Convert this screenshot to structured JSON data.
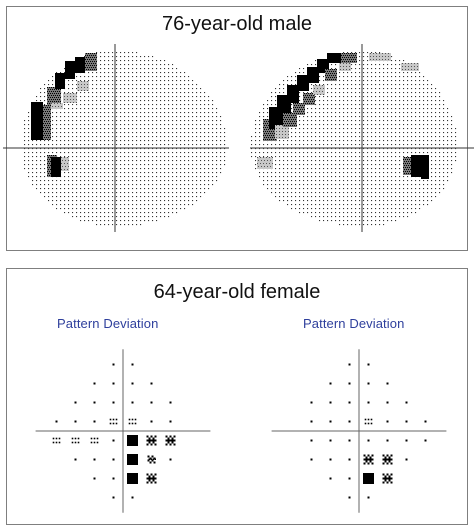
{
  "cases": [
    {
      "title": "76-year-old male",
      "fields": [
        {
          "eye": "left",
          "display": "grayscale",
          "defects": [
            "superior arcuate scotoma",
            "blind spot"
          ]
        },
        {
          "eye": "right",
          "display": "grayscale",
          "defects": [
            "superior arcuate scotoma",
            "blind spot"
          ]
        }
      ]
    },
    {
      "title": "64-year-old female",
      "plots": [
        {
          "label": "Pattern Deviation",
          "eye": "left"
        },
        {
          "label": "Pattern Deviation",
          "eye": "right"
        }
      ]
    }
  ],
  "colors": {
    "border": "#7f7f7f",
    "label": "#2e3f9c",
    "symbol": "#000000"
  },
  "symbol_levels": [
    "dot",
    "light-stipple",
    "checker",
    "black-square"
  ]
}
